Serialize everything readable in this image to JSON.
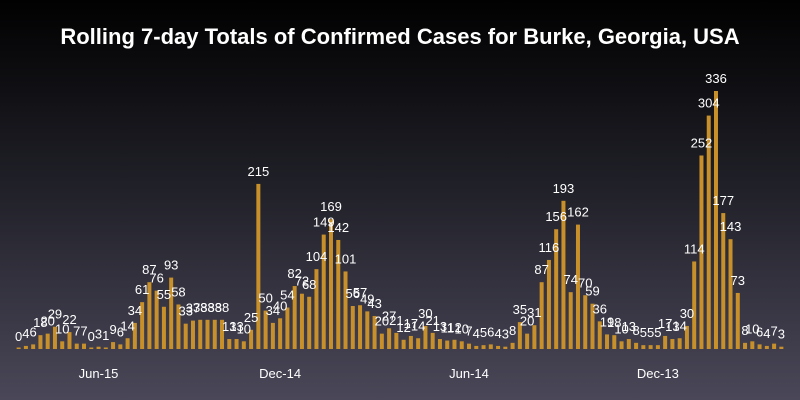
{
  "chart_data": {
    "type": "bar",
    "title": "Rolling 7-day Totals of Confirmed Cases for Burke, Georgia, USA",
    "xlabel": "",
    "ylabel": "",
    "ylim": [
      0,
      336
    ],
    "grid": false,
    "legend": "none",
    "bar_color": "#c8902a",
    "tick_labels": [
      {
        "label": "Jun-15",
        "index": 11
      },
      {
        "label": "Dec-14",
        "index": 36
      },
      {
        "label": "Jun-14",
        "index": 62
      },
      {
        "label": "Dec-13",
        "index": 88
      }
    ],
    "values": [
      0,
      4,
      6,
      18,
      20,
      29,
      10,
      22,
      7,
      7,
      0,
      3,
      1,
      9,
      6,
      14,
      34,
      61,
      87,
      76,
      55,
      93,
      58,
      33,
      37,
      38,
      38,
      38,
      38,
      13,
      13,
      10,
      25,
      215,
      50,
      34,
      40,
      54,
      82,
      72,
      68,
      104,
      149,
      169,
      142,
      101,
      56,
      57,
      49,
      43,
      20,
      27,
      21,
      12,
      17,
      14,
      30,
      21,
      13,
      11,
      12,
      10,
      7,
      4,
      5,
      6,
      4,
      3,
      8,
      35,
      20,
      31,
      87,
      116,
      156,
      193,
      74,
      162,
      70,
      59,
      36,
      19,
      18,
      10,
      13,
      8,
      5,
      5,
      5,
      17,
      13,
      14,
      30,
      114,
      252,
      304,
      336,
      177,
      143,
      73,
      8,
      10,
      6,
      4,
      7,
      3
    ]
  }
}
